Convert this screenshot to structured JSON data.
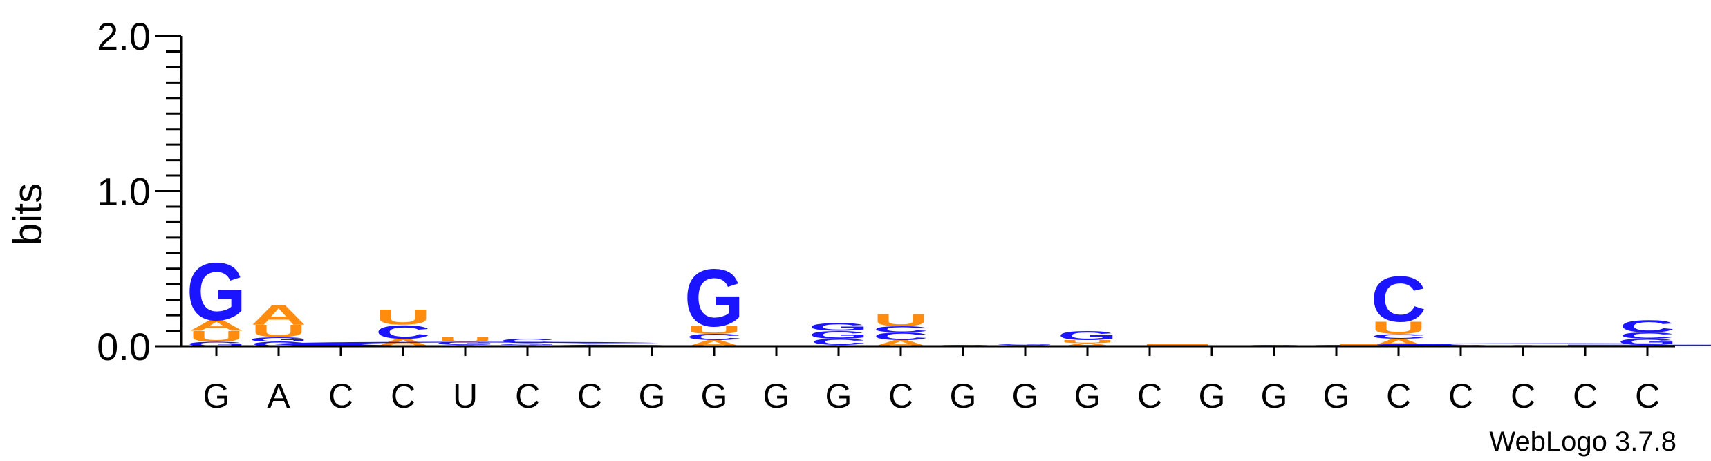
{
  "chart_data": {
    "type": "sequence-logo",
    "ylabel": "bits",
    "ylim": [
      0,
      2.0
    ],
    "yticks": [
      "0.0",
      "1.0",
      "2.0"
    ],
    "watermark": "WebLogo 3.7.8",
    "colors": {
      "G": "#1a14ff",
      "C": "#1a14ff",
      "A": "#ff8c0f",
      "U": "#ff8c0f"
    },
    "consensus": [
      "G",
      "A",
      "C",
      "C",
      "U",
      "C",
      "C",
      "G",
      "G",
      "G",
      "G",
      "C",
      "G",
      "G",
      "G",
      "C",
      "G",
      "G",
      "G",
      "C",
      "C",
      "C",
      "C",
      "C"
    ],
    "positions": [
      {
        "stack": [
          {
            "base": "G",
            "bits": 0.03
          },
          {
            "base": "U",
            "bits": 0.07
          },
          {
            "base": "A",
            "bits": 0.07
          },
          {
            "base": "G",
            "bits": 0.38
          }
        ]
      },
      {
        "stack": [
          {
            "base": "C",
            "bits": 0.03
          },
          {
            "base": "G",
            "bits": 0.03
          },
          {
            "base": "U",
            "bits": 0.08
          },
          {
            "base": "A",
            "bits": 0.13
          }
        ]
      },
      {
        "stack": [
          {
            "base": "G",
            "bits": 0.01
          },
          {
            "base": "C",
            "bits": 0.01
          }
        ]
      },
      {
        "stack": [
          {
            "base": "A",
            "bits": 0.05
          },
          {
            "base": "C",
            "bits": 0.09
          },
          {
            "base": "U",
            "bits": 0.1
          }
        ]
      },
      {
        "stack": [
          {
            "base": "A",
            "bits": 0.01
          },
          {
            "base": "G",
            "bits": 0.02
          },
          {
            "base": "U",
            "bits": 0.03
          }
        ]
      },
      {
        "stack": [
          {
            "base": "A",
            "bits": 0.01
          },
          {
            "base": "G",
            "bits": 0.01
          },
          {
            "base": "C",
            "bits": 0.03
          }
        ]
      },
      {
        "stack": [
          {
            "base": "C",
            "bits": 0.01
          }
        ]
      },
      {
        "stack": []
      },
      {
        "stack": [
          {
            "base": "A",
            "bits": 0.04
          },
          {
            "base": "C",
            "bits": 0.04
          },
          {
            "base": "U",
            "bits": 0.05
          },
          {
            "base": "G",
            "bits": 0.38
          }
        ]
      },
      {
        "stack": []
      },
      {
        "stack": [
          {
            "base": "A",
            "bits": 0.01
          },
          {
            "base": "C",
            "bits": 0.04
          },
          {
            "base": "G",
            "bits": 0.05
          },
          {
            "base": "G",
            "bits": 0.05
          }
        ]
      },
      {
        "stack": [
          {
            "base": "A",
            "bits": 0.04
          },
          {
            "base": "C",
            "bits": 0.05
          },
          {
            "base": "C",
            "bits": 0.04
          },
          {
            "base": "U",
            "bits": 0.08
          }
        ]
      },
      {
        "stack": [
          {
            "base": "C",
            "bits": 0.01
          }
        ]
      },
      {
        "stack": [
          {
            "base": "C",
            "bits": 0.01
          },
          {
            "base": "G",
            "bits": 0.01
          }
        ]
      },
      {
        "stack": [
          {
            "base": "A",
            "bits": 0.02
          },
          {
            "base": "U",
            "bits": 0.02
          },
          {
            "base": "G",
            "bits": 0.06
          }
        ]
      },
      {
        "stack": []
      },
      {
        "stack": []
      },
      {
        "stack": [
          {
            "base": "G",
            "bits": 0.01
          }
        ]
      },
      {
        "stack": [
          {
            "base": "C",
            "bits": 0.01
          }
        ]
      },
      {
        "stack": [
          {
            "base": "A",
            "bits": 0.05
          },
          {
            "base": "C",
            "bits": 0.03
          },
          {
            "base": "U",
            "bits": 0.08
          },
          {
            "base": "C",
            "bits": 0.3
          }
        ]
      },
      {
        "stack": [
          {
            "base": "C",
            "bits": 0.01
          }
        ]
      },
      {
        "stack": [
          {
            "base": "A",
            "bits": 0.01
          }
        ]
      },
      {
        "stack": []
      },
      {
        "stack": [
          {
            "base": "A",
            "bits": 0.01
          },
          {
            "base": "G",
            "bits": 0.04
          },
          {
            "base": "C",
            "bits": 0.04
          },
          {
            "base": "C",
            "bits": 0.08
          }
        ]
      }
    ],
    "spans": [
      {
        "base": "C",
        "bits": 0.03,
        "from": 1,
        "to": 7
      },
      {
        "base": "U",
        "bits": 0.015,
        "from": 15,
        "to": 19
      },
      {
        "base": "G",
        "bits": 0.02,
        "from": 19,
        "to": 24
      }
    ]
  }
}
